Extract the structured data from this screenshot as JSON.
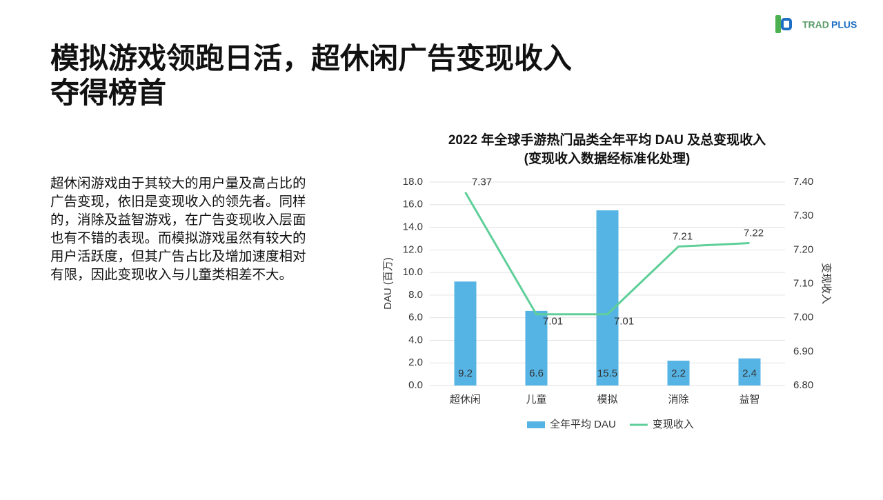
{
  "header": {
    "title_lines": [
      "模拟游戏领跑日活，超休闲广告变现收入",
      "夺得榜首"
    ],
    "logo": {
      "part1": "TRAD",
      "part2": "PLUS"
    }
  },
  "body": {
    "lines": [
      "超休闲游戏由于其较大的用户量及高占比的",
      "广告变现，依旧是变现收入的领先者。同样",
      "的，消除及益智游戏，在广告变现收入层面",
      "也有不错的表现。而模拟游戏虽然有较大的",
      "用户活跃度，但其广告占比及增加速度相对",
      "有限，因此变现收入与儿童类相差不大。"
    ]
  },
  "chart_data": {
    "type": "bar_line",
    "title": "2022 年全球手游热门品类全年平均 DAU 及总变现收入",
    "subtitle": "(变现收入数据经标准化处理)",
    "y_label": "DAU (百万)",
    "y2_label": "变现收入",
    "categories": [
      "超休闲",
      "儿童",
      "模拟",
      "消除",
      "益智"
    ],
    "series": [
      {
        "name": "全年平均 DAU",
        "type": "bar",
        "color": "#56b4e4",
        "values": [
          9.2,
          6.6,
          15.5,
          2.2,
          2.4
        ]
      },
      {
        "name": "变现收入",
        "type": "line",
        "axis": "y2",
        "color": "#5ecf98",
        "values": [
          7.37,
          7.01,
          7.01,
          7.21,
          7.22
        ]
      }
    ],
    "ylim": [
      0,
      18
    ],
    "yticks": [
      {
        "value": 0,
        "label": "0.0"
      },
      {
        "value": 2,
        "label": "2.0"
      },
      {
        "value": 4,
        "label": "4.0"
      },
      {
        "value": 6,
        "label": "6.0"
      },
      {
        "value": 8,
        "label": "8.0"
      },
      {
        "value": 10,
        "label": "10.0"
      },
      {
        "value": 12,
        "label": "12.0"
      },
      {
        "value": 14,
        "label": "14.0"
      },
      {
        "value": 16,
        "label": "16.0"
      },
      {
        "value": 18,
        "label": "18.0"
      }
    ],
    "y2lim": [
      6.8,
      7.4
    ],
    "y2ticks": [
      {
        "value": 6.8,
        "label": "6.80"
      },
      {
        "value": 6.9,
        "label": "6.90"
      },
      {
        "value": 7.0,
        "label": "7.00"
      },
      {
        "value": 7.1,
        "label": "7.10"
      },
      {
        "value": 7.2,
        "label": "7.20"
      },
      {
        "value": 7.3,
        "label": "7.30"
      },
      {
        "value": 7.4,
        "label": "7.40"
      }
    ],
    "grid": true,
    "legend": "bottom"
  }
}
